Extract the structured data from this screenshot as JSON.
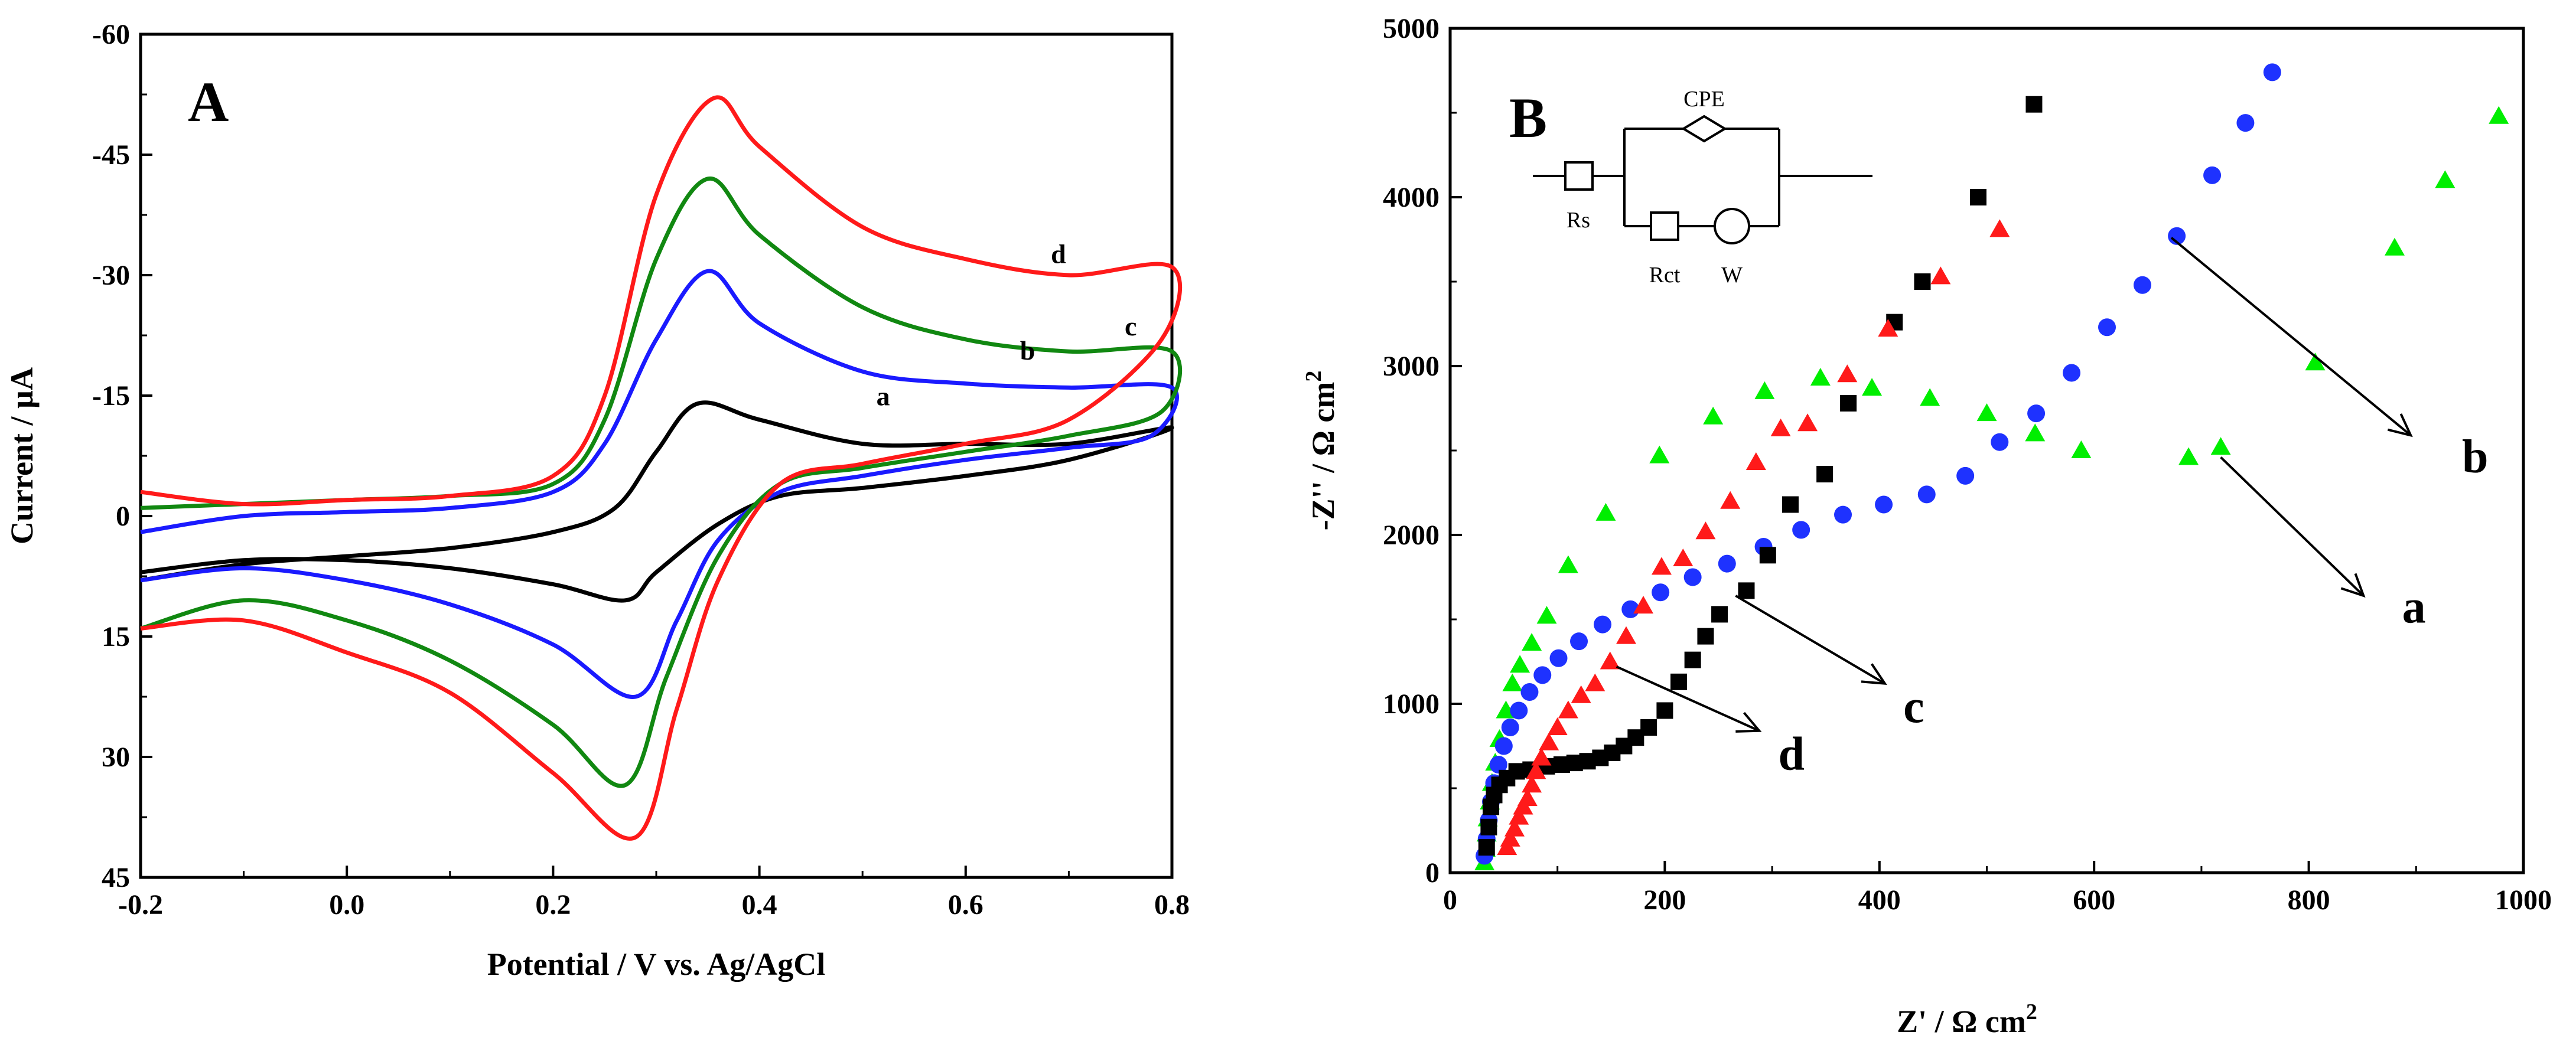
{
  "chart_data": [
    {
      "panel": "A",
      "type": "line",
      "xlabel": "Potential / V vs. Ag/AgCl",
      "ylabel": "Current / µA",
      "xlim": [
        -0.2,
        0.8
      ],
      "ylim": [
        -60,
        45
      ],
      "y_inverted": true,
      "xticks": [
        -0.2,
        0.0,
        0.2,
        0.4,
        0.6,
        0.8
      ],
      "xtick_labels": [
        "-0.2",
        "0.0",
        "0.2",
        "0.4",
        "0.6",
        "0.8"
      ],
      "yticks": [
        -60,
        -45,
        -30,
        -15,
        0,
        15,
        30,
        45
      ],
      "ytick_labels": [
        "-60",
        "-45",
        "-30",
        "-15",
        "0",
        "15",
        "30",
        "45"
      ],
      "series": [
        {
          "name": "a",
          "color": "#000000",
          "label_at": [
            0.52,
            -13.8
          ],
          "forward": [
            [
              -0.2,
              8
            ],
            [
              -0.1,
              6
            ],
            [
              0.0,
              5
            ],
            [
              0.1,
              4
            ],
            [
              0.2,
              2
            ],
            [
              0.26,
              -1
            ],
            [
              0.3,
              -8
            ],
            [
              0.34,
              -14
            ],
            [
              0.4,
              -12
            ],
            [
              0.5,
              -9
            ],
            [
              0.6,
              -9
            ],
            [
              0.7,
              -9
            ],
            [
              0.8,
              -11
            ]
          ],
          "reverse": [
            [
              0.8,
              -11
            ],
            [
              0.7,
              -7
            ],
            [
              0.6,
              -5
            ],
            [
              0.5,
              -3.5
            ],
            [
              0.42,
              -2.5
            ],
            [
              0.36,
              1
            ],
            [
              0.3,
              7
            ],
            [
              0.27,
              10.5
            ],
            [
              0.2,
              8.5
            ],
            [
              0.1,
              6.5
            ],
            [
              0.0,
              5.5
            ],
            [
              -0.1,
              5.5
            ],
            [
              -0.2,
              7
            ]
          ]
        },
        {
          "name": "b",
          "color": "#1a1aff",
          "label_at": [
            0.66,
            -19.5
          ],
          "forward": [
            [
              -0.2,
              2
            ],
            [
              -0.1,
              0
            ],
            [
              0.0,
              -0.5
            ],
            [
              0.1,
              -1
            ],
            [
              0.2,
              -3
            ],
            [
              0.25,
              -9
            ],
            [
              0.3,
              -22
            ],
            [
              0.35,
              -30.5
            ],
            [
              0.4,
              -24
            ],
            [
              0.5,
              -18
            ],
            [
              0.6,
              -16.5
            ],
            [
              0.7,
              -16
            ],
            [
              0.8,
              -16
            ]
          ],
          "reverse": [
            [
              0.8,
              -16
            ],
            [
              0.78,
              -10
            ],
            [
              0.7,
              -8.5
            ],
            [
              0.6,
              -7
            ],
            [
              0.5,
              -5
            ],
            [
              0.42,
              -3
            ],
            [
              0.36,
              3
            ],
            [
              0.32,
              13
            ],
            [
              0.28,
              22.5
            ],
            [
              0.2,
              16
            ],
            [
              0.1,
              11
            ],
            [
              0.0,
              8
            ],
            [
              -0.1,
              6.5
            ],
            [
              -0.2,
              8
            ]
          ]
        },
        {
          "name": "c",
          "color": "#118811",
          "label_at": [
            0.76,
            -22.5
          ],
          "forward": [
            [
              -0.2,
              -1
            ],
            [
              -0.1,
              -1.5
            ],
            [
              0.0,
              -2
            ],
            [
              0.1,
              -2.5
            ],
            [
              0.2,
              -4
            ],
            [
              0.25,
              -12
            ],
            [
              0.3,
              -32
            ],
            [
              0.35,
              -42
            ],
            [
              0.4,
              -35
            ],
            [
              0.5,
              -26
            ],
            [
              0.6,
              -22
            ],
            [
              0.7,
              -20.5
            ],
            [
              0.8,
              -20.5
            ]
          ],
          "reverse": [
            [
              0.8,
              -20.5
            ],
            [
              0.79,
              -13
            ],
            [
              0.7,
              -10
            ],
            [
              0.6,
              -8
            ],
            [
              0.5,
              -6
            ],
            [
              0.42,
              -4
            ],
            [
              0.36,
              5
            ],
            [
              0.31,
              20
            ],
            [
              0.27,
              33.5
            ],
            [
              0.2,
              26
            ],
            [
              0.1,
              18
            ],
            [
              0.0,
              13
            ],
            [
              -0.1,
              10.5
            ],
            [
              -0.2,
              14
            ]
          ]
        },
        {
          "name": "d",
          "color": "#ff1a1a",
          "label_at": [
            0.69,
            -31.5
          ],
          "forward": [
            [
              -0.2,
              -3
            ],
            [
              -0.1,
              -1.5
            ],
            [
              0.0,
              -2
            ],
            [
              0.1,
              -2.5
            ],
            [
              0.2,
              -5
            ],
            [
              0.25,
              -15
            ],
            [
              0.3,
              -40
            ],
            [
              0.355,
              -52
            ],
            [
              0.4,
              -46
            ],
            [
              0.5,
              -36
            ],
            [
              0.6,
              -32
            ],
            [
              0.7,
              -30
            ],
            [
              0.8,
              -31
            ]
          ],
          "reverse": [
            [
              0.8,
              -31
            ],
            [
              0.79,
              -22
            ],
            [
              0.7,
              -12
            ],
            [
              0.6,
              -9
            ],
            [
              0.5,
              -6.5
            ],
            [
              0.42,
              -4
            ],
            [
              0.36,
              8
            ],
            [
              0.32,
              24
            ],
            [
              0.28,
              40
            ],
            [
              0.2,
              32
            ],
            [
              0.1,
              22
            ],
            [
              0.0,
              17
            ],
            [
              -0.1,
              13
            ],
            [
              -0.2,
              14
            ]
          ]
        }
      ]
    },
    {
      "panel": "B",
      "type": "scatter",
      "xlabel": "Z' / Ω cm",
      "xlabel_sup": "2",
      "ylabel": "-Z'' / Ω cm",
      "ylabel_sup": "2",
      "xlim": [
        0,
        1000
      ],
      "ylim": [
        0,
        5000
      ],
      "xticks": [
        0,
        200,
        400,
        600,
        800,
        1000
      ],
      "xtick_labels": [
        "0",
        "200",
        "400",
        "600",
        "800",
        "1000"
      ],
      "yticks": [
        0,
        1000,
        2000,
        3000,
        4000,
        5000
      ],
      "ytick_labels": [
        "0",
        "1000",
        "2000",
        "3000",
        "4000",
        "5000"
      ],
      "series": [
        {
          "name": "a",
          "marker": "triangle",
          "color": "#00ee00",
          "x": [
            32,
            33,
            34,
            35,
            37,
            39,
            42,
            46,
            52,
            58,
            65,
            76,
            90,
            110,
            145,
            195,
            245,
            293,
            345,
            393,
            447,
            500,
            545,
            588,
            688,
            718,
            806,
            880,
            927,
            977
          ],
          "y": [
            60,
            140,
            230,
            320,
            420,
            530,
            650,
            790,
            960,
            1120,
            1230,
            1360,
            1520,
            1820,
            2130,
            2470,
            2700,
            2850,
            2930,
            2870,
            2810,
            2720,
            2600,
            2500,
            2460,
            2520,
            3020,
            3700,
            4100,
            4480
          ]
        },
        {
          "name": "b",
          "marker": "circle",
          "color": "#1e32ff",
          "x": [
            32,
            34,
            36,
            38,
            41,
            45,
            50,
            56,
            64,
            74,
            86,
            101,
            120,
            142,
            168,
            196,
            226,
            258,
            292,
            327,
            366,
            404,
            444,
            480,
            512,
            546,
            579,
            612,
            645,
            677,
            710,
            741,
            766
          ],
          "y": [
            100,
            200,
            310,
            420,
            530,
            640,
            750,
            860,
            960,
            1070,
            1170,
            1270,
            1370,
            1470,
            1560,
            1660,
            1750,
            1830,
            1930,
            2030,
            2120,
            2180,
            2240,
            2350,
            2550,
            2720,
            2960,
            3230,
            3480,
            3770,
            4130,
            4440,
            4740
          ]
        },
        {
          "name": "c",
          "marker": "square",
          "color": "#000000",
          "x": [
            34,
            36,
            38,
            41,
            46,
            53,
            62,
            75,
            90,
            104,
            116,
            128,
            140,
            151,
            162,
            173,
            185,
            200,
            213,
            226,
            238,
            251,
            276,
            296,
            317,
            349,
            371,
            414,
            440,
            492,
            544
          ],
          "y": [
            150,
            270,
            390,
            460,
            520,
            560,
            600,
            610,
            630,
            640,
            650,
            660,
            680,
            710,
            750,
            800,
            860,
            960,
            1130,
            1260,
            1400,
            1530,
            1670,
            1880,
            2180,
            2360,
            2780,
            3260,
            3500,
            4000,
            4550
          ]
        },
        {
          "name": "d",
          "marker": "triangle",
          "color": "#ff1a1a",
          "x": [
            53,
            56,
            60,
            64,
            68,
            72,
            76,
            80,
            85,
            92,
            100,
            110,
            122,
            135,
            149,
            164,
            180,
            197,
            217,
            238,
            261,
            285,
            308,
            333,
            370,
            408,
            457,
            512
          ],
          "y": [
            150,
            200,
            260,
            330,
            390,
            440,
            520,
            600,
            680,
            770,
            860,
            960,
            1050,
            1120,
            1250,
            1400,
            1580,
            1810,
            1860,
            2020,
            2200,
            2430,
            2630,
            2660,
            2950,
            3220,
            3530,
            3810
          ]
        }
      ],
      "arrows": [
        {
          "label": "b",
          "from": [
            672,
            3760
          ],
          "to": [
            895,
            2590
          ],
          "label_at": [
            955,
            2370
          ]
        },
        {
          "label": "a",
          "from": [
            718,
            2460
          ],
          "to": [
            851,
            1640
          ],
          "label_at": [
            898,
            1480
          ]
        },
        {
          "label": "c",
          "from": [
            266,
            1640
          ],
          "to": [
            405,
            1120
          ],
          "label_at": [
            432,
            890
          ]
        },
        {
          "label": "d",
          "from": [
            155,
            1220
          ],
          "to": [
            288,
            840
          ],
          "label_at": [
            318,
            610
          ]
        }
      ],
      "circuit": {
        "labels": [
          "CPE",
          "Rs",
          "Rct",
          "W"
        ]
      }
    }
  ],
  "panel_labels": [
    "A",
    "B"
  ]
}
